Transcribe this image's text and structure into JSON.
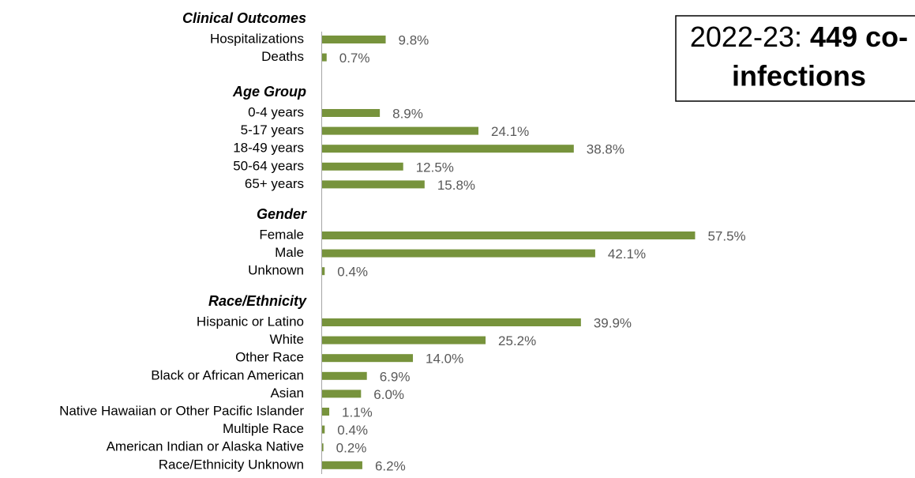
{
  "chart_data": {
    "type": "bar",
    "orientation": "horizontal",
    "color": "#77933c",
    "xlim": [
      0,
      60
    ],
    "annotation": {
      "label": "2022-23:",
      "emphasis": [
        "449 co-",
        "infections"
      ]
    },
    "groups": [
      {
        "name": "Clinical Outcomes",
        "categories": [
          "Hospitalizations",
          "Deaths"
        ],
        "values": [
          9.8,
          0.7
        ],
        "value_labels": [
          "9.8%",
          "0.7%"
        ]
      },
      {
        "name": "Age Group",
        "categories": [
          "0-4 years",
          "5-17 years",
          "18-49 years",
          "50-64 years",
          "65+ years"
        ],
        "values": [
          8.9,
          24.1,
          38.8,
          12.5,
          15.8
        ],
        "value_labels": [
          "8.9%",
          "24.1%",
          "38.8%",
          "12.5%",
          "15.8%"
        ]
      },
      {
        "name": "Gender",
        "categories": [
          "Female",
          "Male",
          "Unknown"
        ],
        "values": [
          57.5,
          42.1,
          0.4
        ],
        "value_labels": [
          "57.5%",
          "42.1%",
          "0.4%"
        ]
      },
      {
        "name": "Race/Ethnicity",
        "categories": [
          "Hispanic or Latino",
          "White",
          "Other Race",
          "Black or African American",
          "Asian",
          "Native Hawaiian or Other Pacific Islander",
          "Multiple Race",
          "American Indian or Alaska Native",
          "Race/Ethnicity Unknown"
        ],
        "values": [
          39.9,
          25.2,
          14.0,
          6.9,
          6.0,
          1.1,
          0.4,
          0.2,
          6.2
        ],
        "value_labels": [
          "39.9%",
          "25.2%",
          "14.0%",
          "6.9%",
          "6.0%",
          "1.1%",
          "0.4%",
          "0.2%",
          "6.2%"
        ]
      }
    ]
  }
}
